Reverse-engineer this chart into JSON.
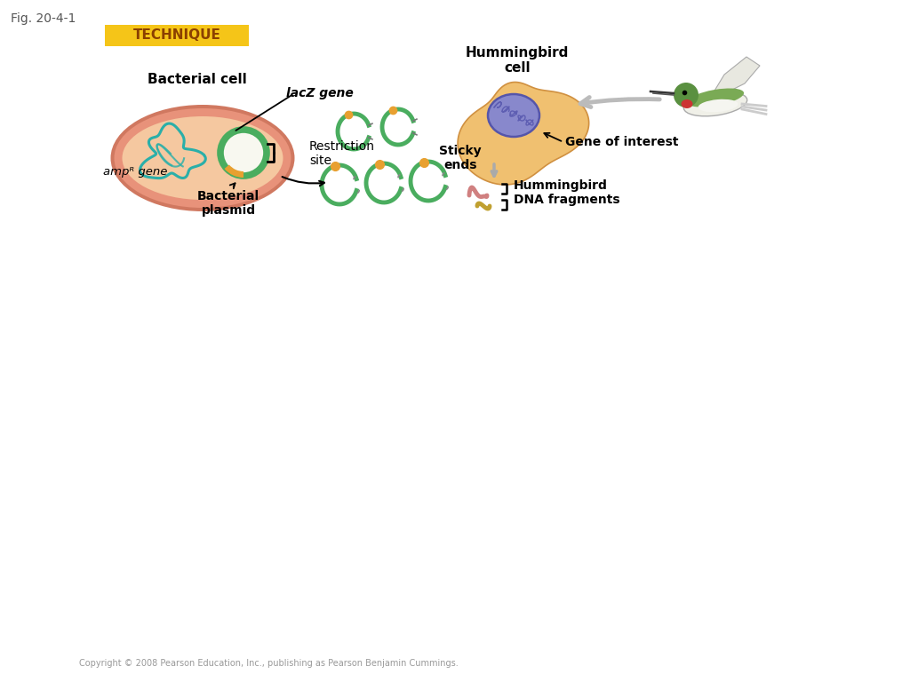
{
  "fig_label": "Fig. 20-4-1",
  "technique_label": "TECHNIQUE",
  "technique_bg": "#F5C518",
  "technique_text_color": "#8B4000",
  "background_color": "#ffffff",
  "copyright": "Copyright © 2008 Pearson Education, Inc., publishing as Pearson Benjamin Cummings.",
  "labels": {
    "bacterial_cell": "Bacterial cell",
    "lacZ_gene": "lacZ gene",
    "ampR_gene": "ampᴿ gene",
    "bacterial_plasmid": "Bacterial\nplasmid",
    "restriction_site": "Restriction\nsite",
    "hummingbird_cell": "Hummingbird\ncell",
    "sticky_ends": "Sticky\nends",
    "gene_of_interest": "Gene of interest",
    "hummingbird_dna": "Hummingbird\nDNA fragments"
  },
  "colors": {
    "bacterium_outer": "#E8927A",
    "bacterium_inner": "#F5C8A0",
    "chromosome_teal": "#2AAFA9",
    "plasmid_green": "#4AAD5F",
    "plasmid_fill": "#F8F8F0",
    "plasmid_orange": "#E8A030",
    "cell_orange": "#F0C070",
    "cell_edge": "#D09040",
    "nucleus_blue": "#8888CC",
    "nucleus_outline": "#5555AA",
    "nucleus_inner": "#5050AA",
    "arrow_gray": "#BBBBBB",
    "fragment_pink": "#D08080",
    "fragment_yellow": "#C0A030"
  }
}
